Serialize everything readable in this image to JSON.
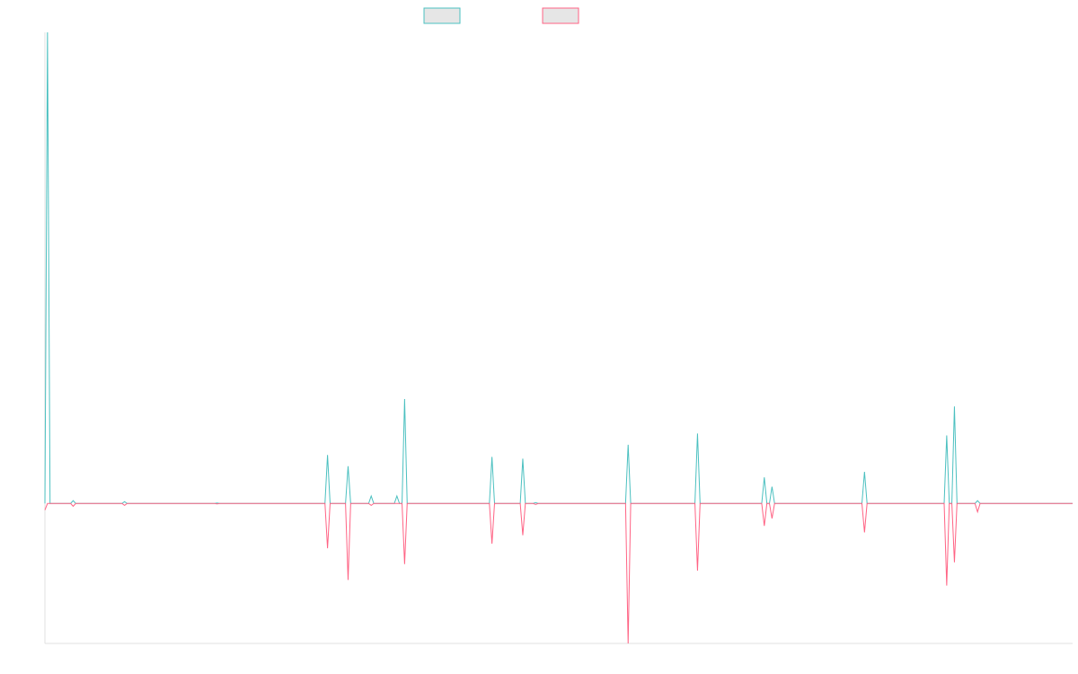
{
  "chart_data": {
    "type": "line",
    "title": "",
    "xlabel": "",
    "ylabel": "",
    "ylim": [
      -150,
      505
    ],
    "grid": false,
    "legend_position": "top-center",
    "series": [
      {
        "color": "#4bc0c0",
        "points": [
          [
            0,
            0
          ],
          [
            1,
            505
          ],
          [
            2,
            0
          ],
          [
            10,
            0
          ],
          [
            11,
            3
          ],
          [
            12,
            0
          ],
          [
            30,
            0
          ],
          [
            31,
            2
          ],
          [
            32,
            0
          ],
          [
            66,
            0
          ],
          [
            67,
            0.5
          ],
          [
            68,
            0
          ],
          [
            109,
            0
          ],
          [
            110,
            52
          ],
          [
            111,
            0
          ],
          [
            117,
            0
          ],
          [
            118,
            40
          ],
          [
            119,
            0
          ],
          [
            126,
            0
          ],
          [
            127,
            8
          ],
          [
            128,
            0
          ],
          [
            136,
            0
          ],
          [
            137,
            8
          ],
          [
            138,
            0
          ],
          [
            139,
            0
          ],
          [
            140,
            112
          ],
          [
            141,
            0
          ],
          [
            173,
            0
          ],
          [
            174,
            50
          ],
          [
            175,
            0
          ],
          [
            185,
            0
          ],
          [
            186,
            48
          ],
          [
            187,
            0
          ],
          [
            190,
            0
          ],
          [
            191,
            1
          ],
          [
            192,
            0
          ],
          [
            226,
            0
          ],
          [
            227,
            63
          ],
          [
            228,
            0
          ],
          [
            253,
            0
          ],
          [
            254,
            75
          ],
          [
            255,
            0
          ],
          [
            279,
            0
          ],
          [
            280,
            28
          ],
          [
            281,
            0
          ],
          [
            282,
            0
          ],
          [
            283,
            18
          ],
          [
            284,
            0
          ],
          [
            318,
            0
          ],
          [
            319,
            34
          ],
          [
            320,
            0
          ],
          [
            350,
            0
          ],
          [
            351,
            73
          ],
          [
            352,
            0
          ],
          [
            353,
            0
          ],
          [
            354,
            104
          ],
          [
            355,
            0
          ],
          [
            362,
            0
          ],
          [
            363,
            3
          ],
          [
            364,
            0
          ],
          [
            400,
            0
          ]
        ]
      },
      {
        "color": "#ff6384",
        "points": [
          [
            0,
            -7
          ],
          [
            1,
            0
          ],
          [
            2,
            0
          ],
          [
            10,
            0
          ],
          [
            11,
            -3
          ],
          [
            12,
            0
          ],
          [
            30,
            0
          ],
          [
            31,
            -2
          ],
          [
            32,
            0
          ],
          [
            66,
            0
          ],
          [
            67,
            -0.5
          ],
          [
            68,
            0
          ],
          [
            109,
            0
          ],
          [
            110,
            -48
          ],
          [
            111,
            0
          ],
          [
            117,
            0
          ],
          [
            118,
            -82
          ],
          [
            119,
            0
          ],
          [
            126,
            0
          ],
          [
            127,
            -2
          ],
          [
            128,
            0
          ],
          [
            136,
            0
          ],
          [
            137,
            0
          ],
          [
            138,
            0
          ],
          [
            139,
            0
          ],
          [
            140,
            -65
          ],
          [
            141,
            0
          ],
          [
            173,
            0
          ],
          [
            174,
            -43
          ],
          [
            175,
            0
          ],
          [
            185,
            0
          ],
          [
            186,
            -34
          ],
          [
            187,
            0
          ],
          [
            190,
            0
          ],
          [
            191,
            -1
          ],
          [
            192,
            0
          ],
          [
            226,
            0
          ],
          [
            227,
            -150
          ],
          [
            228,
            0
          ],
          [
            253,
            0
          ],
          [
            254,
            -72
          ],
          [
            255,
            0
          ],
          [
            279,
            0
          ],
          [
            280,
            -24
          ],
          [
            281,
            0
          ],
          [
            282,
            0
          ],
          [
            283,
            -16
          ],
          [
            284,
            0
          ],
          [
            318,
            0
          ],
          [
            319,
            -31
          ],
          [
            320,
            0
          ],
          [
            350,
            0
          ],
          [
            351,
            -88
          ],
          [
            352,
            0
          ],
          [
            353,
            0
          ],
          [
            354,
            -63
          ],
          [
            355,
            0
          ],
          [
            362,
            0
          ],
          [
            363,
            -9
          ],
          [
            364,
            0
          ],
          [
            400,
            0
          ]
        ]
      }
    ],
    "legend": [
      {
        "color": "#4bc0c0",
        "fill": "#e6e6e6",
        "label": ""
      },
      {
        "color": "#ff6384",
        "fill": "#e6e6e6",
        "label": ""
      }
    ]
  }
}
